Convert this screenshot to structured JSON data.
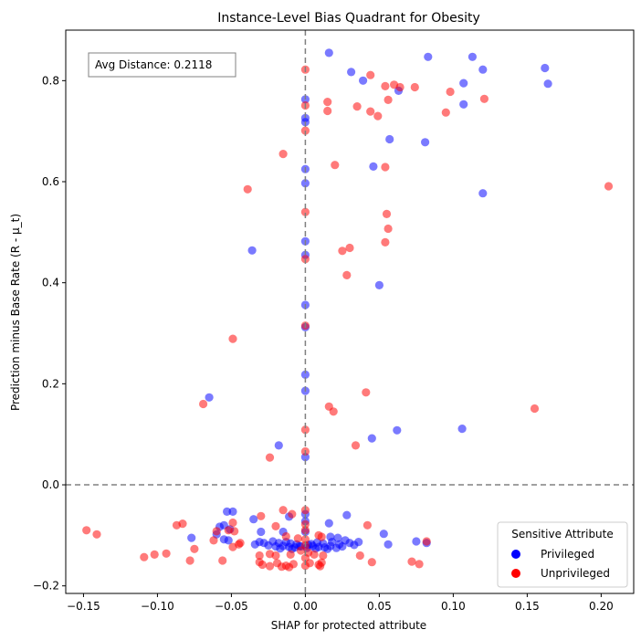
{
  "chart_data": {
    "type": "scatter",
    "title": "Instance-Level Bias Quadrant for Obesity",
    "xlabel": "SHAP for protected attribute",
    "ylabel": "Prediction minus Base Rate (R - μ_t)",
    "xlim": [
      -0.162,
      0.222
    ],
    "ylim": [
      -0.215,
      0.9
    ],
    "xticks": [
      -0.15,
      -0.1,
      -0.05,
      0.0,
      0.05,
      0.1,
      0.15,
      0.2
    ],
    "xtick_labels": [
      "−0.15",
      "−0.10",
      "−0.05",
      "0.00",
      "0.05",
      "0.10",
      "0.15",
      "0.20"
    ],
    "yticks": [
      -0.2,
      0.0,
      0.2,
      0.4,
      0.6,
      0.8
    ],
    "ytick_labels": [
      "−0.2",
      "0.0",
      "0.2",
      "0.4",
      "0.6",
      "0.8"
    ],
    "grid": false,
    "reference_lines": {
      "x": 0.0,
      "y": 0.0,
      "style": "dashed",
      "color": "#808080"
    },
    "annotation": "Avg Distance: 0.2118",
    "annotation_position": "top-left",
    "legend": {
      "title": "Sensitive Attribute",
      "position": "bottom-right",
      "entries": [
        {
          "label": "Privileged",
          "color": "#0000ff"
        },
        {
          "label": "Unprivileged",
          "color": "#ff0000"
        }
      ]
    },
    "series": [
      {
        "name": "Privileged",
        "color": "#0000ff",
        "points": [
          [
            0.016,
            0.855
          ],
          [
            0.113,
            0.847
          ],
          [
            0.083,
            0.847
          ],
          [
            0.162,
            0.825
          ],
          [
            0.12,
            0.822
          ],
          [
            0.031,
            0.817
          ],
          [
            0.039,
            0.8
          ],
          [
            0.107,
            0.795
          ],
          [
            0.164,
            0.794
          ],
          [
            0.063,
            0.78
          ],
          [
            0.107,
            0.753
          ],
          [
            0.0,
            0.763
          ],
          [
            0.0,
            0.726
          ],
          [
            0.0,
            0.718
          ],
          [
            0.057,
            0.684
          ],
          [
            0.081,
            0.678
          ],
          [
            0.046,
            0.63
          ],
          [
            0.0,
            0.625
          ],
          [
            0.0,
            0.597
          ],
          [
            0.12,
            0.577
          ],
          [
            0.0,
            0.482
          ],
          [
            -0.036,
            0.464
          ],
          [
            0.0,
            0.455
          ],
          [
            0.05,
            0.395
          ],
          [
            0.0,
            0.356
          ],
          [
            0.0,
            0.312
          ],
          [
            0.0,
            0.218
          ],
          [
            0.0,
            0.186
          ],
          [
            -0.065,
            0.173
          ],
          [
            0.062,
            0.108
          ],
          [
            0.106,
            0.111
          ],
          [
            0.045,
            0.092
          ],
          [
            -0.018,
            0.078
          ],
          [
            0.0,
            0.055
          ],
          [
            -0.053,
            -0.053
          ],
          [
            -0.049,
            -0.053
          ],
          [
            0.0,
            -0.058
          ],
          [
            -0.011,
            -0.063
          ],
          [
            0.028,
            -0.06
          ],
          [
            0.0,
            -0.072
          ],
          [
            -0.035,
            -0.068
          ],
          [
            -0.055,
            -0.08
          ],
          [
            -0.051,
            -0.088
          ],
          [
            -0.058,
            -0.083
          ],
          [
            0.016,
            -0.076
          ],
          [
            -0.06,
            -0.098
          ],
          [
            -0.03,
            -0.093
          ],
          [
            -0.015,
            -0.093
          ],
          [
            0.0,
            -0.093
          ],
          [
            0.053,
            -0.097
          ],
          [
            -0.077,
            -0.105
          ],
          [
            -0.055,
            -0.108
          ],
          [
            -0.052,
            -0.11
          ],
          [
            0.017,
            -0.103
          ],
          [
            0.022,
            -0.105
          ],
          [
            0.027,
            -0.11
          ],
          [
            -0.031,
            -0.113
          ],
          [
            -0.028,
            -0.115
          ],
          [
            -0.022,
            -0.112
          ],
          [
            -0.018,
            -0.115
          ],
          [
            -0.013,
            -0.113
          ],
          [
            -0.01,
            -0.116
          ],
          [
            -0.006,
            -0.118
          ],
          [
            0.004,
            -0.117
          ],
          [
            0.008,
            -0.114
          ],
          [
            0.012,
            -0.116
          ],
          [
            0.018,
            -0.113
          ],
          [
            0.023,
            -0.118
          ],
          [
            0.03,
            -0.115
          ],
          [
            0.036,
            -0.113
          ],
          [
            0.056,
            -0.118
          ],
          [
            0.075,
            -0.112
          ],
          [
            0.082,
            -0.115
          ],
          [
            -0.034,
            -0.118
          ],
          [
            -0.025,
            -0.12
          ],
          [
            -0.02,
            -0.122
          ],
          [
            -0.015,
            -0.121
          ],
          [
            -0.011,
            -0.123
          ],
          [
            -0.007,
            -0.124
          ],
          [
            -0.003,
            -0.122
          ],
          [
            0.001,
            -0.125
          ],
          [
            0.005,
            -0.121
          ],
          [
            0.009,
            -0.123
          ],
          [
            0.013,
            -0.124
          ],
          [
            0.017,
            -0.121
          ],
          [
            0.021,
            -0.125
          ],
          [
            0.025,
            -0.122
          ],
          [
            0.033,
            -0.119
          ],
          [
            -0.017,
            -0.126
          ],
          [
            -0.009,
            -0.127
          ],
          [
            0.007,
            -0.126
          ],
          [
            0.015,
            -0.127
          ],
          [
            -0.004,
            -0.121
          ],
          [
            0.002,
            -0.119
          ]
        ]
      },
      {
        "name": "Unprivileged",
        "color": "#ff0000",
        "points": [
          [
            0.0,
            0.822
          ],
          [
            0.044,
            0.811
          ],
          [
            0.06,
            0.792
          ],
          [
            0.054,
            0.789
          ],
          [
            0.064,
            0.787
          ],
          [
            0.074,
            0.787
          ],
          [
            0.098,
            0.778
          ],
          [
            0.121,
            0.764
          ],
          [
            0.056,
            0.762
          ],
          [
            0.015,
            0.758
          ],
          [
            0.0,
            0.751
          ],
          [
            0.035,
            0.749
          ],
          [
            0.015,
            0.74
          ],
          [
            0.044,
            0.739
          ],
          [
            0.049,
            0.73
          ],
          [
            0.095,
            0.737
          ],
          [
            0.0,
            0.701
          ],
          [
            -0.015,
            0.655
          ],
          [
            0.02,
            0.633
          ],
          [
            0.054,
            0.629
          ],
          [
            0.205,
            0.591
          ],
          [
            -0.039,
            0.585
          ],
          [
            0.055,
            0.536
          ],
          [
            0.0,
            0.54
          ],
          [
            0.056,
            0.507
          ],
          [
            0.054,
            0.48
          ],
          [
            0.03,
            0.469
          ],
          [
            0.025,
            0.463
          ],
          [
            0.0,
            0.447
          ],
          [
            0.028,
            0.415
          ],
          [
            0.0,
            0.315
          ],
          [
            -0.049,
            0.289
          ],
          [
            0.041,
            0.183
          ],
          [
            -0.069,
            0.16
          ],
          [
            0.016,
            0.155
          ],
          [
            0.155,
            0.151
          ],
          [
            0.019,
            0.145
          ],
          [
            0.0,
            0.109
          ],
          [
            0.034,
            0.078
          ],
          [
            0.0,
            0.066
          ],
          [
            -0.024,
            0.054
          ],
          [
            0.0,
            -0.05
          ],
          [
            -0.015,
            -0.05
          ],
          [
            -0.009,
            -0.058
          ],
          [
            -0.03,
            -0.062
          ],
          [
            0.0,
            -0.078
          ],
          [
            -0.087,
            -0.08
          ],
          [
            -0.083,
            -0.077
          ],
          [
            -0.049,
            -0.075
          ],
          [
            -0.052,
            -0.09
          ],
          [
            -0.148,
            -0.09
          ],
          [
            -0.141,
            -0.098
          ],
          [
            -0.06,
            -0.092
          ],
          [
            -0.02,
            -0.082
          ],
          [
            -0.048,
            -0.092
          ],
          [
            0.042,
            -0.08
          ],
          [
            0.009,
            -0.1
          ],
          [
            0.011,
            -0.103
          ],
          [
            -0.013,
            -0.102
          ],
          [
            -0.005,
            -0.106
          ],
          [
            0.0,
            -0.108
          ],
          [
            -0.044,
            -0.115
          ],
          [
            -0.062,
            -0.11
          ],
          [
            -0.045,
            -0.118
          ],
          [
            -0.075,
            -0.127
          ],
          [
            -0.049,
            -0.123
          ],
          [
            0.082,
            -0.112
          ],
          [
            -0.003,
            -0.13
          ],
          [
            0.002,
            -0.134
          ],
          [
            -0.024,
            -0.137
          ],
          [
            -0.02,
            -0.14
          ],
          [
            -0.01,
            -0.138
          ],
          [
            0.006,
            -0.138
          ],
          [
            0.012,
            -0.14
          ],
          [
            -0.031,
            -0.14
          ],
          [
            -0.094,
            -0.136
          ],
          [
            -0.102,
            -0.138
          ],
          [
            -0.109,
            -0.143
          ],
          [
            0.037,
            -0.14
          ],
          [
            -0.078,
            -0.15
          ],
          [
            -0.056,
            -0.15
          ],
          [
            -0.031,
            -0.153
          ],
          [
            -0.019,
            -0.155
          ],
          [
            -0.013,
            -0.16
          ],
          [
            -0.008,
            -0.157
          ],
          [
            0.003,
            -0.155
          ],
          [
            0.009,
            -0.158
          ],
          [
            0.011,
            -0.154
          ],
          [
            -0.024,
            -0.161
          ],
          [
            -0.016,
            -0.162
          ],
          [
            -0.011,
            -0.163
          ],
          [
            0.01,
            -0.161
          ],
          [
            0.045,
            -0.153
          ],
          [
            0.072,
            -0.152
          ],
          [
            0.077,
            -0.157
          ],
          [
            -0.029,
            -0.158
          ],
          [
            0.0,
            -0.12
          ],
          [
            0.0,
            -0.145
          ],
          [
            0.0,
            -0.09
          ],
          [
            0.0,
            -0.16
          ]
        ]
      }
    ]
  }
}
